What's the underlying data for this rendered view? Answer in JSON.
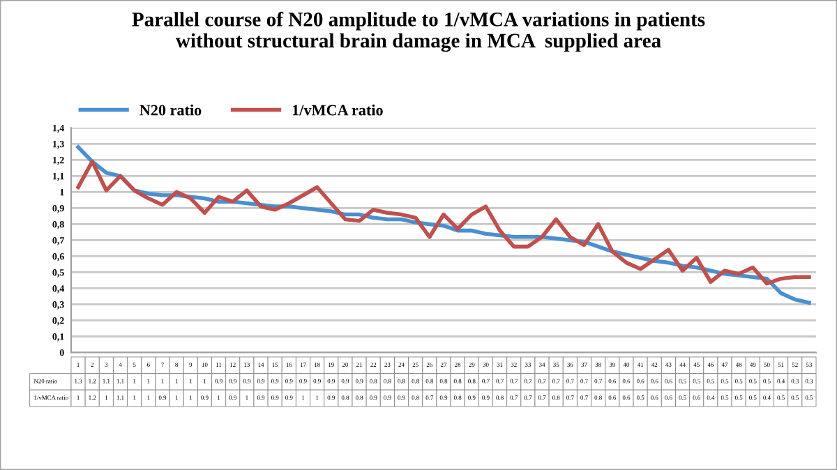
{
  "chart_data": {
    "type": "line",
    "title": "Parallel course of N20 amplitude to 1/vMCA variations in patients\nwithout structural brain damage in MCA  supplied area",
    "categories": [
      "1",
      "2",
      "3",
      "4",
      "5",
      "6",
      "7",
      "8",
      "9",
      "10",
      "11",
      "12",
      "13",
      "14",
      "15",
      "16",
      "17",
      "18",
      "19",
      "20",
      "21",
      "22",
      "23",
      "24",
      "25",
      "26",
      "27",
      "28",
      "29",
      "30",
      "31",
      "32",
      "33",
      "34",
      "35",
      "36",
      "37",
      "38",
      "39",
      "40",
      "41",
      "42",
      "43",
      "44",
      "45",
      "46",
      "47",
      "48",
      "49",
      "50",
      "51",
      "52",
      "53"
    ],
    "series": [
      {
        "name": "N20 ratio",
        "color": "#4a8fd0",
        "values": [
          1.28,
          1.19,
          1.12,
          1.1,
          1.01,
          0.99,
          0.98,
          0.98,
          0.97,
          0.96,
          0.94,
          0.94,
          0.93,
          0.92,
          0.91,
          0.91,
          0.9,
          0.89,
          0.88,
          0.86,
          0.86,
          0.84,
          0.83,
          0.83,
          0.81,
          0.8,
          0.79,
          0.76,
          0.76,
          0.74,
          0.73,
          0.72,
          0.72,
          0.72,
          0.71,
          0.7,
          0.69,
          0.66,
          0.63,
          0.61,
          0.59,
          0.57,
          0.56,
          0.54,
          0.53,
          0.51,
          0.49,
          0.48,
          0.47,
          0.46,
          0.37,
          0.33,
          0.31
        ],
        "value_labels": [
          "1.3",
          "1.2",
          "1.1",
          "1.1",
          "1",
          "1",
          "1",
          "1",
          "1",
          "1",
          "0.9",
          "0.9",
          "0.9",
          "0.9",
          "0.9",
          "0.9",
          "0.9",
          "0.9",
          "0.9",
          "0.9",
          "0.9",
          "0.8",
          "0.8",
          "0.8",
          "0.8",
          "0.8",
          "0.8",
          "0.8",
          "0.8",
          "0.7",
          "0.7",
          "0.7",
          "0.7",
          "0.7",
          "0.7",
          "0.7",
          "0.7",
          "0.7",
          "0.6",
          "0.6",
          "0.6",
          "0.6",
          "0.6",
          "0.5",
          "0.5",
          "0.5",
          "0.5",
          "0.5",
          "0.5",
          "0.5",
          "0.4",
          "0.3",
          "0.3"
        ]
      },
      {
        "name": "1/vMCA ratio",
        "color": "#c0504d",
        "values": [
          1.03,
          1.19,
          1.01,
          1.1,
          1.01,
          0.96,
          0.92,
          1.0,
          0.96,
          0.87,
          0.97,
          0.94,
          1.01,
          0.91,
          0.89,
          0.93,
          0.98,
          1.03,
          0.93,
          0.83,
          0.82,
          0.89,
          0.87,
          0.86,
          0.84,
          0.72,
          0.86,
          0.77,
          0.86,
          0.91,
          0.76,
          0.66,
          0.66,
          0.72,
          0.83,
          0.72,
          0.67,
          0.8,
          0.63,
          0.56,
          0.52,
          0.58,
          0.64,
          0.51,
          0.59,
          0.44,
          0.51,
          0.49,
          0.53,
          0.43,
          0.46,
          0.47,
          0.47
        ],
        "value_labels": [
          "1",
          "1.2",
          "1",
          "1.1",
          "1",
          "1",
          "0.9",
          "1",
          "1",
          "0.9",
          "1",
          "0.9",
          "1",
          "0.9",
          "0.9",
          "0.9",
          "1",
          "1",
          "0.9",
          "0.8",
          "0.8",
          "0.9",
          "0.9",
          "0.9",
          "0.8",
          "0.7",
          "0.9",
          "0.8",
          "0.9",
          "0.9",
          "0.8",
          "0.7",
          "0.7",
          "0.7",
          "0.8",
          "0.7",
          "0.7",
          "0.8",
          "0.6",
          "0.6",
          "0.5",
          "0.6",
          "0.6",
          "0.5",
          "0.6",
          "0.4",
          "0.5",
          "0.5",
          "0.5",
          "0.4",
          "0.5",
          "0.5",
          "0.5"
        ]
      }
    ],
    "ylim": [
      0,
      1.4
    ],
    "yticks": [
      0,
      {
        "value": 0.1,
        "label": "0,1"
      },
      {
        "value": 0.2,
        "label": "0,2"
      },
      {
        "value": 0.3,
        "label": "0,3"
      },
      {
        "value": 0.4,
        "label": "0,4"
      },
      {
        "value": 0.5,
        "label": "0,5"
      },
      {
        "value": 0.6,
        "label": "0,6"
      },
      {
        "value": 0.7,
        "label": "0,7"
      },
      {
        "value": 0.8,
        "label": "0,8"
      },
      {
        "value": 0.9,
        "label": "0,9"
      },
      1,
      {
        "value": 1.1,
        "label": "1,1"
      },
      {
        "value": 1.2,
        "label": "1,2"
      },
      {
        "value": 1.3,
        "label": "1,3"
      },
      {
        "value": 1.4,
        "label": "1,4"
      }
    ],
    "grid": "y",
    "legend": "top left",
    "marker": "none",
    "line_style": "solid"
  }
}
